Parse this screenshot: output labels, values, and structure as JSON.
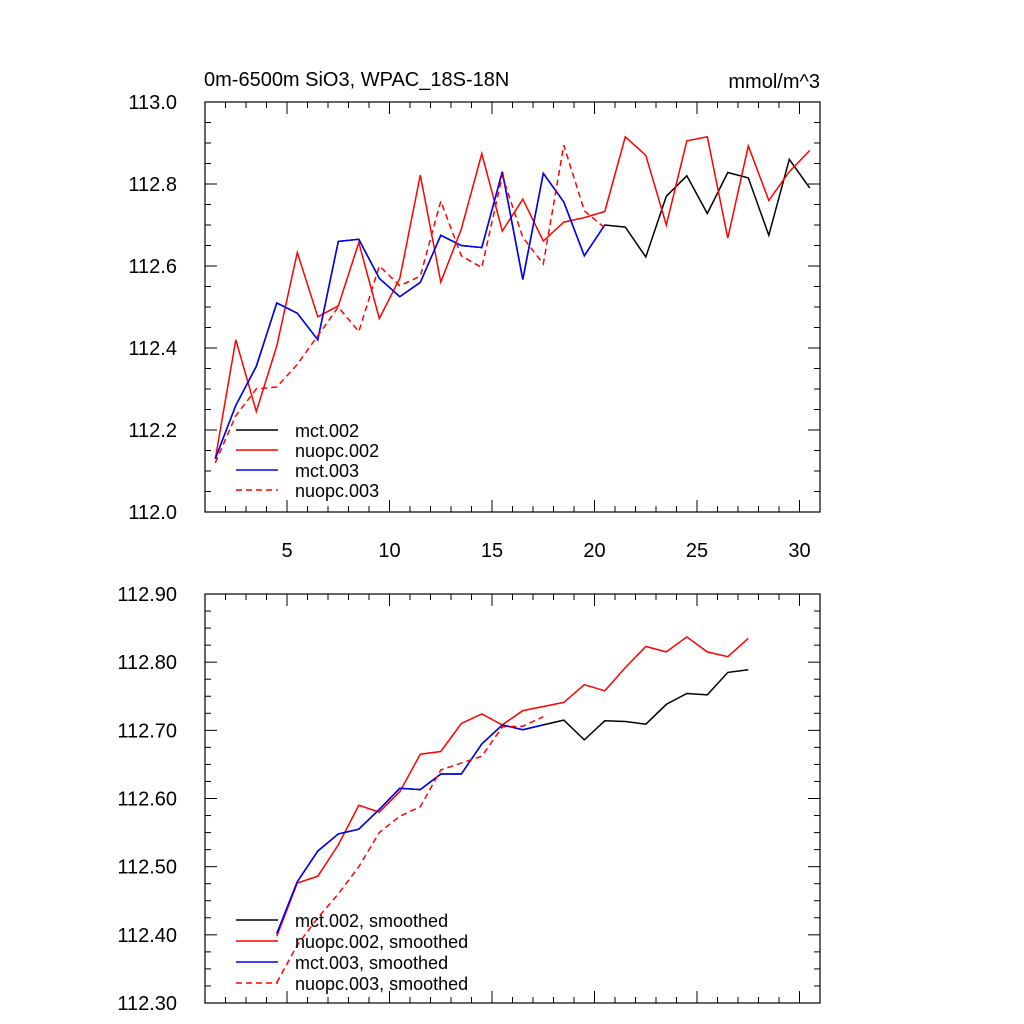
{
  "chart_data": [
    {
      "type": "line",
      "title": "0m-6500m SiO3, WPAC_18S-18N",
      "units": "mmol/m^3",
      "xlabel": "",
      "ylabel": "",
      "xlim": [
        1,
        31
      ],
      "ylim": [
        112.0,
        113.0
      ],
      "xticks": [
        5,
        10,
        15,
        20,
        25,
        30
      ],
      "yticks": [
        112.0,
        112.2,
        112.4,
        112.6,
        112.8,
        113.0
      ],
      "ytick_labels": [
        "112.0",
        "112.2",
        "112.4",
        "112.6",
        "112.8",
        "113.0"
      ],
      "show_xtick_labels": true,
      "legend_position": "bottom-left",
      "series": [
        {
          "name": "mct.002",
          "color": "#000000",
          "dashed": false,
          "x_start": 1.5,
          "values": [
            112.13,
            112.26,
            112.355,
            112.51,
            112.485,
            112.42,
            112.66,
            112.665,
            112.57,
            112.525,
            112.56,
            112.675,
            112.65,
            112.645,
            112.83,
            112.567,
            112.826,
            112.756,
            112.625,
            112.7,
            112.695,
            112.622,
            112.77,
            112.82,
            112.728,
            112.828,
            112.815,
            112.675,
            112.86,
            112.79
          ]
        },
        {
          "name": "nuopc.002",
          "color": "#ff0000",
          "dashed": false,
          "x_start": 1.5,
          "values": [
            112.13,
            112.42,
            112.245,
            112.405,
            112.633,
            112.476,
            112.503,
            112.657,
            112.472,
            112.57,
            112.822,
            112.561,
            112.69,
            112.874,
            112.685,
            112.763,
            112.661,
            112.707,
            112.718,
            112.733,
            112.915,
            112.87,
            112.7,
            112.905,
            112.915,
            112.668,
            112.893,
            112.76,
            112.83,
            112.882
          ]
        },
        {
          "name": "mct.003",
          "color": "#0000ff",
          "dashed": false,
          "x_start": 1.5,
          "values": [
            112.13,
            112.26,
            112.355,
            112.51,
            112.485,
            112.42,
            112.66,
            112.665,
            112.57,
            112.525,
            112.56,
            112.675,
            112.65,
            112.645,
            112.83,
            112.567,
            112.826,
            112.756,
            112.625,
            112.7
          ]
        },
        {
          "name": "nuopc.003",
          "color": "#ff0000",
          "dashed": true,
          "x_start": 1.5,
          "values": [
            112.12,
            112.235,
            112.3,
            112.305,
            112.36,
            112.43,
            112.5,
            112.44,
            112.6,
            112.552,
            112.575,
            112.758,
            112.625,
            112.596,
            112.82,
            112.67,
            112.605,
            112.895,
            112.735,
            112.693
          ]
        }
      ],
      "legend": [
        {
          "label": "mct.002",
          "color": "#000000",
          "dashed": false
        },
        {
          "label": "nuopc.002",
          "color": "#ff0000",
          "dashed": false
        },
        {
          "label": "mct.003",
          "color": "#0000ff",
          "dashed": false
        },
        {
          "label": "nuopc.003",
          "color": "#ff0000",
          "dashed": true
        }
      ]
    },
    {
      "type": "line",
      "title": "",
      "units": "",
      "xlabel": "",
      "ylabel": "",
      "xlim": [
        1,
        31
      ],
      "ylim": [
        112.3,
        112.9
      ],
      "xticks": [
        5,
        10,
        15,
        20,
        25,
        30
      ],
      "yticks": [
        112.3,
        112.4,
        112.5,
        112.6,
        112.7,
        112.8,
        112.9
      ],
      "ytick_labels": [
        "112.30",
        "112.40",
        "112.50",
        "112.60",
        "112.70",
        "112.80",
        "112.90"
      ],
      "show_xtick_labels": false,
      "legend_position": "bottom-left",
      "series": [
        {
          "name": "mct.002, smoothed",
          "color": "#000000",
          "dashed": false,
          "x_start": 4.5,
          "values": [
            112.402,
            112.478,
            112.523,
            112.548,
            112.555,
            112.584,
            112.615,
            112.613,
            112.636,
            112.636,
            112.68,
            112.708,
            112.701,
            112.708,
            112.715,
            112.686,
            112.714,
            112.713,
            112.709,
            112.738,
            112.754,
            112.752,
            112.785,
            112.789
          ]
        },
        {
          "name": "nuopc.002, smoothed",
          "color": "#ff0000",
          "dashed": false,
          "x_start": 4.5,
          "values": [
            112.398,
            112.476,
            112.486,
            112.532,
            112.59,
            112.58,
            112.61,
            112.665,
            112.669,
            112.71,
            112.724,
            112.708,
            112.729,
            112.735,
            112.741,
            112.767,
            112.758,
            112.792,
            112.823,
            112.815,
            112.837,
            112.815,
            112.808,
            112.835
          ]
        },
        {
          "name": "mct.003, smoothed",
          "color": "#0000ff",
          "dashed": false,
          "x_start": 4.5,
          "values": [
            112.402,
            112.478,
            112.523,
            112.548,
            112.555,
            112.584,
            112.615,
            112.613,
            112.636,
            112.636,
            112.68,
            112.708,
            112.701,
            112.708
          ]
        },
        {
          "name": "nuopc.003, smoothed",
          "color": "#ff0000",
          "dashed": true,
          "x_start": 4.5,
          "values": [
            112.33,
            112.385,
            112.425,
            112.46,
            112.5,
            112.55,
            112.574,
            112.588,
            112.642,
            112.652,
            112.662,
            112.705,
            112.706,
            112.72
          ]
        }
      ],
      "legend": [
        {
          "label": "mct.002, smoothed",
          "color": "#000000",
          "dashed": false
        },
        {
          "label": "nuopc.002, smoothed",
          "color": "#ff0000",
          "dashed": false
        },
        {
          "label": "mct.003, smoothed",
          "color": "#0000ff",
          "dashed": false
        },
        {
          "label": "nuopc.003, smoothed",
          "color": "#ff0000",
          "dashed": true
        }
      ]
    }
  ]
}
